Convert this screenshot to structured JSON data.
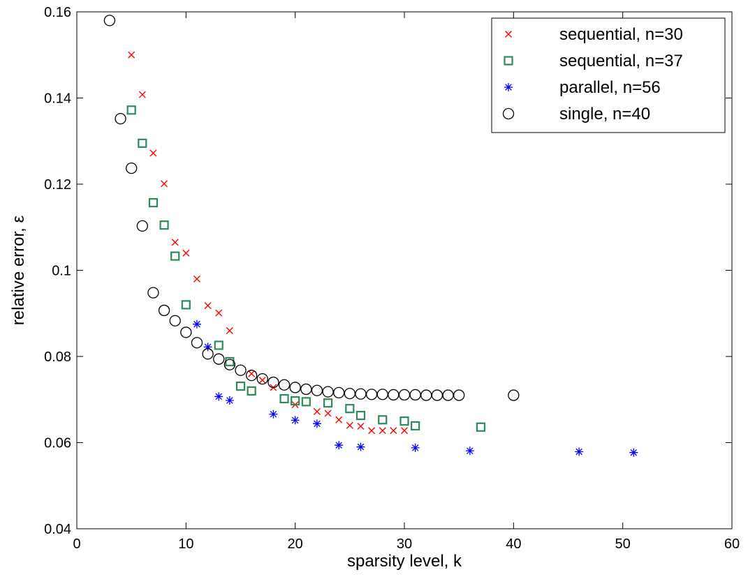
{
  "chart_data": {
    "type": "scatter",
    "xlabel": "sparsity level, k",
    "ylabel": "relative error, ε",
    "xlim": [
      0,
      60
    ],
    "ylim": [
      0.04,
      0.16
    ],
    "xticks": [
      0,
      10,
      20,
      30,
      40,
      50,
      60
    ],
    "xtick_labels": [
      "0",
      "10",
      "20",
      "30",
      "40",
      "50",
      "60"
    ],
    "yticks": [
      0.04,
      0.06,
      0.08,
      0.1,
      0.12,
      0.14,
      0.16
    ],
    "ytick_labels": [
      "0.04",
      "0.06",
      "0.08",
      "0.1",
      "0.12",
      "0.14",
      "0.16"
    ],
    "grid": false,
    "legend_position": "top-right",
    "series": [
      {
        "name": "sequential, n=30",
        "marker": "x",
        "color": "#ff0000",
        "points": [
          [
            5,
            0.15
          ],
          [
            6,
            0.1408
          ],
          [
            7,
            0.1272
          ],
          [
            8,
            0.1201
          ],
          [
            9,
            0.1065
          ],
          [
            10,
            0.104
          ],
          [
            11,
            0.098
          ],
          [
            12,
            0.0918
          ],
          [
            13,
            0.0901
          ],
          [
            14,
            0.086
          ],
          [
            16,
            0.076
          ],
          [
            17,
            0.0745
          ],
          [
            18,
            0.0728
          ],
          [
            20,
            0.0688
          ],
          [
            22,
            0.0672
          ],
          [
            23,
            0.0668
          ],
          [
            24,
            0.0653
          ],
          [
            25,
            0.064
          ],
          [
            26,
            0.0638
          ],
          [
            27,
            0.0628
          ],
          [
            28,
            0.0628
          ],
          [
            29,
            0.0628
          ],
          [
            30,
            0.0628
          ]
        ]
      },
      {
        "name": "sequential, n=37",
        "marker": "square",
        "color": "#2e8b57",
        "points": [
          [
            5,
            0.1372
          ],
          [
            6,
            0.1295
          ],
          [
            7,
            0.1157
          ],
          [
            8,
            0.1105
          ],
          [
            9,
            0.1033
          ],
          [
            10,
            0.092
          ],
          [
            13,
            0.0826
          ],
          [
            14,
            0.0788
          ],
          [
            15,
            0.0731
          ],
          [
            16,
            0.072
          ],
          [
            19,
            0.0702
          ],
          [
            20,
            0.0697
          ],
          [
            21,
            0.0695
          ],
          [
            23,
            0.0692
          ],
          [
            25,
            0.0679
          ],
          [
            26,
            0.0663
          ],
          [
            28,
            0.0653
          ],
          [
            30,
            0.065
          ],
          [
            31,
            0.0639
          ],
          [
            37,
            0.0636
          ]
        ]
      },
      {
        "name": "parallel, n=56",
        "marker": "asterisk",
        "color": "#0000ff",
        "points": [
          [
            11,
            0.0875
          ],
          [
            12,
            0.0822
          ],
          [
            13,
            0.0707
          ],
          [
            14,
            0.0698
          ],
          [
            18,
            0.0666
          ],
          [
            20,
            0.0652
          ],
          [
            22,
            0.0644
          ],
          [
            24,
            0.0594
          ],
          [
            26,
            0.059
          ],
          [
            31,
            0.0588
          ],
          [
            36,
            0.0581
          ],
          [
            46,
            0.0579
          ],
          [
            51,
            0.0577
          ]
        ]
      },
      {
        "name": "single, n=40",
        "marker": "circle",
        "color": "#000000",
        "points": [
          [
            3,
            0.158
          ],
          [
            4,
            0.1352
          ],
          [
            5,
            0.1237
          ],
          [
            6,
            0.1103
          ],
          [
            7,
            0.0948
          ],
          [
            8,
            0.0907
          ],
          [
            9,
            0.0883
          ],
          [
            10,
            0.0856
          ],
          [
            11,
            0.0832
          ],
          [
            12,
            0.0806
          ],
          [
            13,
            0.0794
          ],
          [
            14,
            0.0781
          ],
          [
            15,
            0.0768
          ],
          [
            16,
            0.0756
          ],
          [
            17,
            0.0748
          ],
          [
            18,
            0.074
          ],
          [
            19,
            0.0734
          ],
          [
            20,
            0.0728
          ],
          [
            21,
            0.0724
          ],
          [
            22,
            0.0721
          ],
          [
            23,
            0.0718
          ],
          [
            24,
            0.0716
          ],
          [
            25,
            0.0714
          ],
          [
            26,
            0.0713
          ],
          [
            27,
            0.0712
          ],
          [
            28,
            0.0712
          ],
          [
            29,
            0.0711
          ],
          [
            30,
            0.0711
          ],
          [
            31,
            0.0711
          ],
          [
            32,
            0.071
          ],
          [
            33,
            0.071
          ],
          [
            34,
            0.071
          ],
          [
            35,
            0.071
          ],
          [
            40,
            0.071
          ]
        ]
      }
    ]
  }
}
